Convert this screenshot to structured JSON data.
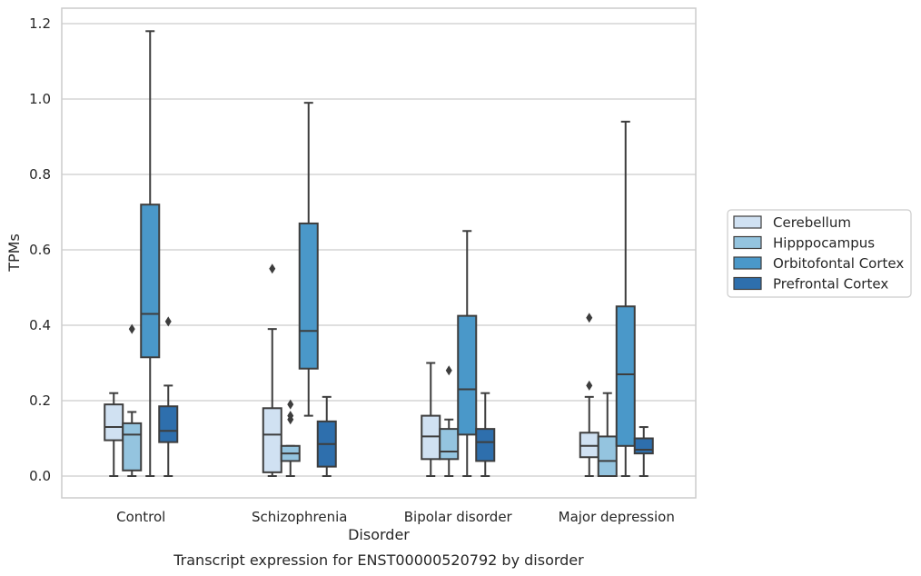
{
  "chart_data": {
    "type": "box",
    "title": "",
    "caption": "Transcript expression for ENST00000520792 by disorder",
    "xlabel": "Disorder",
    "ylabel": "TPMs",
    "ylim": [
      -0.056,
      1.24
    ],
    "yticks": [
      0.0,
      0.2,
      0.4,
      0.6,
      0.8,
      1.0,
      1.2
    ],
    "ytick_labels": [
      "0.0",
      "0.2",
      "0.4",
      "0.6",
      "0.8",
      "1.0",
      "1.2"
    ],
    "grid": "horizontal",
    "legend_position": "right",
    "categories": [
      "Control",
      "Schizophrenia",
      "Bipolar disorder",
      "Major depression"
    ],
    "series": [
      {
        "name": "Cerebellum",
        "color": "#d0e1f2",
        "boxes": [
          {
            "whislo": 0.0,
            "q1": 0.095,
            "med": 0.13,
            "q3": 0.19,
            "whishi": 0.22,
            "fliers": []
          },
          {
            "whislo": 0.0,
            "q1": 0.01,
            "med": 0.11,
            "q3": 0.18,
            "whishi": 0.39,
            "fliers": [
              0.55
            ]
          },
          {
            "whislo": 0.0,
            "q1": 0.045,
            "med": 0.105,
            "q3": 0.16,
            "whishi": 0.3,
            "fliers": []
          },
          {
            "whislo": 0.0,
            "q1": 0.05,
            "med": 0.08,
            "q3": 0.115,
            "whishi": 0.21,
            "fliers": [
              0.24,
              0.42
            ]
          }
        ]
      },
      {
        "name": "Hipppocampus",
        "color": "#94c4df",
        "boxes": [
          {
            "whislo": 0.0,
            "q1": 0.015,
            "med": 0.11,
            "q3": 0.14,
            "whishi": 0.17,
            "fliers": [
              0.39
            ]
          },
          {
            "whislo": 0.0,
            "q1": 0.04,
            "med": 0.06,
            "q3": 0.08,
            "whishi": 0.08,
            "fliers": [
              0.15,
              0.16,
              0.19
            ]
          },
          {
            "whislo": 0.0,
            "q1": 0.045,
            "med": 0.065,
            "q3": 0.125,
            "whishi": 0.15,
            "fliers": [
              0.28
            ]
          },
          {
            "whislo": 0.0,
            "q1": 0.0,
            "med": 0.04,
            "q3": 0.105,
            "whishi": 0.22,
            "fliers": []
          }
        ]
      },
      {
        "name": "Orbitofontal Cortex",
        "color": "#4a98c9",
        "boxes": [
          {
            "whislo": 0.0,
            "q1": 0.315,
            "med": 0.43,
            "q3": 0.72,
            "whishi": 1.18,
            "fliers": []
          },
          {
            "whislo": 0.16,
            "q1": 0.285,
            "med": 0.385,
            "q3": 0.67,
            "whishi": 0.99,
            "fliers": []
          },
          {
            "whislo": 0.0,
            "q1": 0.11,
            "med": 0.23,
            "q3": 0.425,
            "whishi": 0.65,
            "fliers": []
          },
          {
            "whislo": 0.0,
            "q1": 0.08,
            "med": 0.27,
            "q3": 0.45,
            "whishi": 0.94,
            "fliers": []
          }
        ]
      },
      {
        "name": "Prefrontal Cortex",
        "color": "#2e6fad",
        "boxes": [
          {
            "whislo": 0.0,
            "q1": 0.09,
            "med": 0.12,
            "q3": 0.185,
            "whishi": 0.24,
            "fliers": [
              0.41
            ]
          },
          {
            "whislo": 0.0,
            "q1": 0.025,
            "med": 0.085,
            "q3": 0.145,
            "whishi": 0.21,
            "fliers": []
          },
          {
            "whislo": 0.0,
            "q1": 0.04,
            "med": 0.09,
            "q3": 0.125,
            "whishi": 0.22,
            "fliers": []
          },
          {
            "whislo": 0.0,
            "q1": 0.06,
            "med": 0.07,
            "q3": 0.1,
            "whishi": 0.13,
            "fliers": []
          }
        ]
      }
    ]
  }
}
